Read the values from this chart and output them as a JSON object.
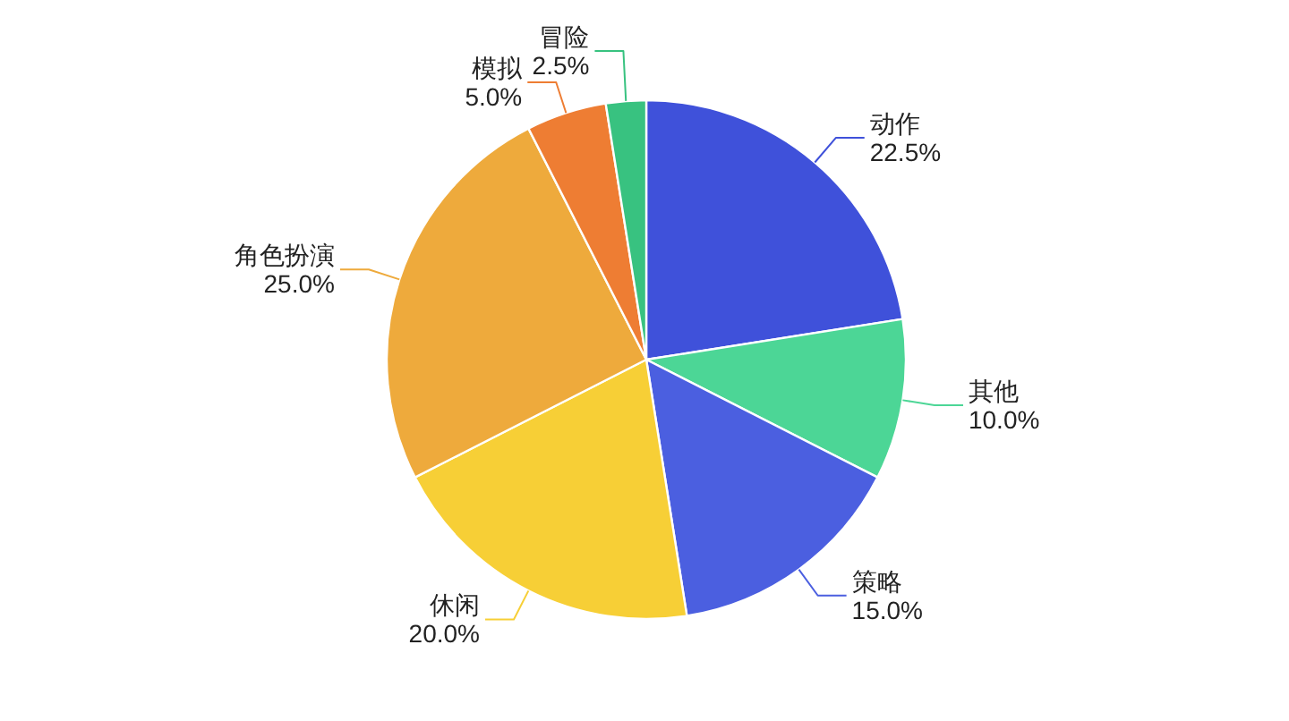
{
  "chart_data": {
    "type": "pie",
    "categories": [
      "动作",
      "其他",
      "策略",
      "休闲",
      "角色扮演",
      "模拟",
      "冒险"
    ],
    "values": [
      22.5,
      10.0,
      15.0,
      20.0,
      25.0,
      5.0,
      2.5
    ],
    "value_labels": [
      "22.5%",
      "10.0%",
      "15.0%",
      "20.0%",
      "25.0%",
      "5.0%",
      "2.5%"
    ],
    "colors": [
      "#3f51da",
      "#4cd696",
      "#4b5fe0",
      "#f7cf36",
      "#eeaa3c",
      "#ee7d33",
      "#38c280"
    ]
  }
}
